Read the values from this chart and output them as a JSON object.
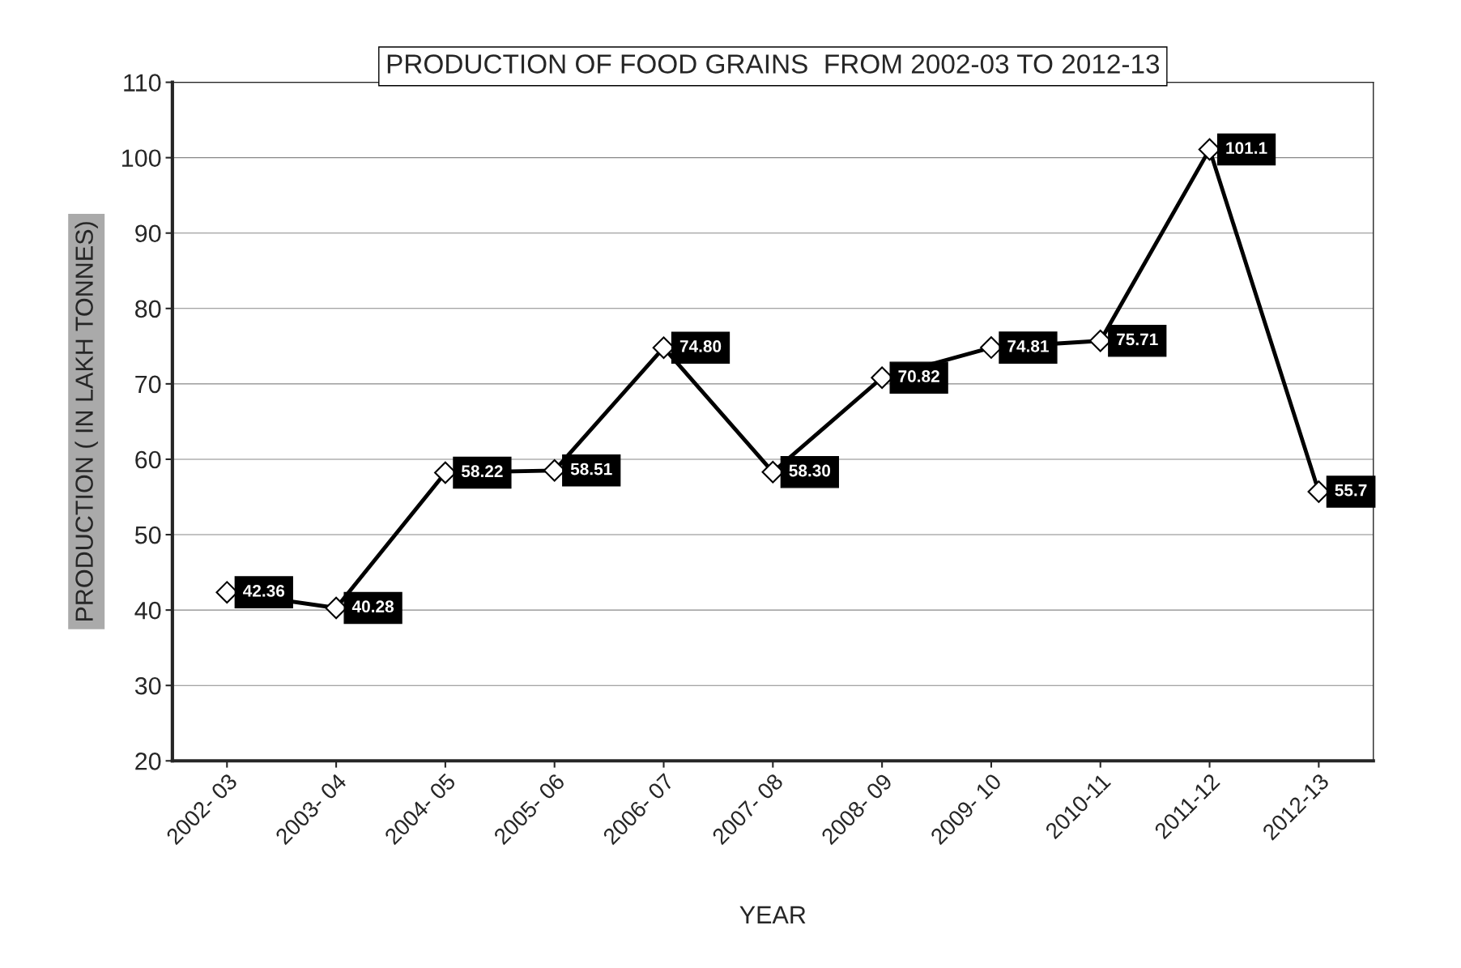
{
  "chart_data": {
    "type": "line",
    "title": "PRODUCTION OF FOOD GRAINS  FROM 2002-03 TO 2012-13",
    "xlabel": "YEAR",
    "ylabel": "PRODUCTION ( IN LAKH TONNES)",
    "categories": [
      "2002- 03",
      "2003- 04",
      "2004- 05",
      "2005- 06",
      "2006- 07",
      "2007- 08",
      "2008- 09",
      "2009- 10",
      "2010-11",
      "2011-12",
      "2012-13"
    ],
    "series": [
      {
        "color": "#000000",
        "values": [
          42.36,
          40.28,
          58.22,
          58.51,
          74.8,
          58.3,
          70.82,
          74.81,
          75.71,
          101.1,
          55.7
        ],
        "value_labels": [
          "42.36",
          "40.28",
          "58.22",
          "58.51",
          "74.80",
          "58.30",
          "70.82",
          "74.81",
          "75.71",
          "101.1",
          "55.7"
        ]
      }
    ],
    "ylim": [
      20,
      110
    ],
    "yticks": [
      20,
      30,
      40,
      50,
      60,
      70,
      80,
      90,
      100,
      110
    ],
    "grid": "y",
    "marker": "diamond",
    "line_style": "solid"
  }
}
